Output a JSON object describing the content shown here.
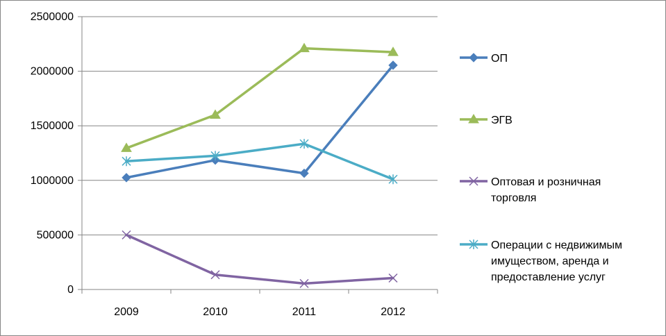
{
  "chart_data": {
    "type": "line",
    "title": "",
    "xlabel": "",
    "ylabel": "",
    "categories": [
      "2009",
      "2010",
      "2011",
      "2012"
    ],
    "ylim": [
      0,
      2500000
    ],
    "yticks": [
      0,
      500000,
      1000000,
      1500000,
      2000000,
      2500000
    ],
    "ytick_labels": [
      "0",
      "500000",
      "1000000",
      "1500000",
      "2000000",
      "2500000"
    ],
    "grid": true,
    "legend_position": "right",
    "series": [
      {
        "name": "ОП",
        "legend_lines": [
          "ОП"
        ],
        "color": "#4a7ebb",
        "marker": "diamond",
        "values": [
          1025000,
          1185000,
          1065000,
          2055000
        ]
      },
      {
        "name": "ЭГВ",
        "legend_lines": [
          "ЭГВ"
        ],
        "color": "#9bbb59",
        "marker": "triangle",
        "values": [
          1295000,
          1600000,
          2210000,
          2175000
        ]
      },
      {
        "name": "Оптовая и розничная торговля",
        "legend_lines": [
          "Оптовая и розничная",
          "торговля"
        ],
        "color": "#8064a2",
        "marker": "x",
        "values": [
          500000,
          135000,
          55000,
          105000
        ]
      },
      {
        "name": "Операции с недвижимым имуществом, аренда и предоставление услуг",
        "legend_lines": [
          "Операции с недвижимым",
          "имуществом, аренда и",
          "предоставление услуг"
        ],
        "color": "#4bacc6",
        "marker": "star",
        "values": [
          1175000,
          1225000,
          1335000,
          1010000
        ]
      }
    ]
  }
}
